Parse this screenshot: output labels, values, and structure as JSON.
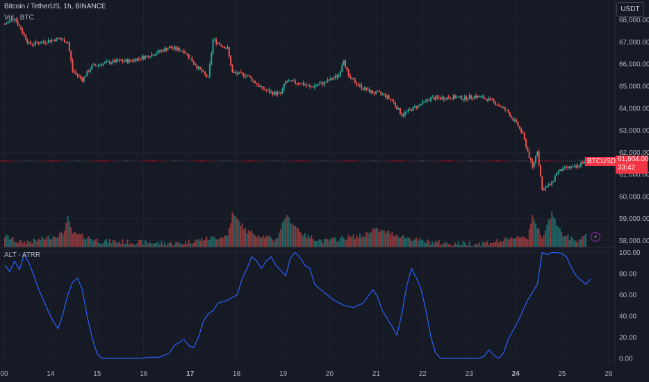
{
  "header": {
    "title": "Bitcoin / TetherUS, 1h, BINANCE",
    "volume_label": "Vol · BTC",
    "currency_button": "USDT"
  },
  "indicator": {
    "title": "ALT - ATRR"
  },
  "price_tag": {
    "symbol": "BTCUSDT",
    "price": "61,604.00",
    "countdown": "33:42"
  },
  "icons": {
    "alert": "lightning-icon"
  },
  "colors": {
    "background": "#161a25",
    "up": "#26a69a",
    "down": "#ef5350",
    "indicator_line": "#2962ff",
    "price_line": "#f23645"
  },
  "chart_data": [
    {
      "type": "candlestick",
      "title": "Bitcoin / TetherUS, 1h, BINANCE",
      "y_ticks": [
        "68,000.00",
        "67,000.00",
        "66,000.00",
        "65,000.00",
        "64,000.00",
        "63,000.00",
        "62,000.00",
        "61,000.00",
        "60,000.00",
        "59,000.00",
        "58,000.00"
      ],
      "ylim": [
        57700,
        68900
      ],
      "x_ticks": [
        "00",
        "14",
        "15",
        "16",
        "17",
        "18",
        "19",
        "20",
        "21",
        "22",
        "23",
        "24",
        "25",
        "26"
      ],
      "bold_x_ticks": [
        "17",
        "24"
      ],
      "last_price": 61604,
      "close_path": [
        [
          0,
          67800
        ],
        [
          2,
          68100
        ],
        [
          5,
          66900
        ],
        [
          8,
          67000
        ],
        [
          11,
          67150
        ],
        [
          13,
          67000
        ],
        [
          14,
          65700
        ],
        [
          16,
          65300
        ],
        [
          18,
          65900
        ],
        [
          22,
          66100
        ],
        [
          26,
          66150
        ],
        [
          30,
          66400
        ],
        [
          34,
          66750
        ],
        [
          37,
          66600
        ],
        [
          40,
          65800
        ],
        [
          42,
          65350
        ],
        [
          43,
          67100
        ],
        [
          46,
          66700
        ],
        [
          47,
          65600
        ],
        [
          50,
          65500
        ],
        [
          53,
          64900
        ],
        [
          55,
          64700
        ],
        [
          57,
          64650
        ],
        [
          58,
          65200
        ],
        [
          61,
          65150
        ],
        [
          63,
          64950
        ],
        [
          66,
          65150
        ],
        [
          69,
          65500
        ],
        [
          70,
          66250
        ],
        [
          71,
          65400
        ],
        [
          74,
          64900
        ],
        [
          76,
          64700
        ],
        [
          78,
          64650
        ],
        [
          80,
          64350
        ],
        [
          82,
          63700
        ],
        [
          84,
          63950
        ],
        [
          86,
          64200
        ],
        [
          88,
          64450
        ],
        [
          90,
          64450
        ],
        [
          93,
          64500
        ],
        [
          95,
          64450
        ],
        [
          97,
          64550
        ],
        [
          100,
          64400
        ],
        [
          102,
          64150
        ],
        [
          104,
          63800
        ],
        [
          106,
          63200
        ],
        [
          107,
          62800
        ],
        [
          109,
          61300
        ],
        [
          110,
          62100
        ],
        [
          111,
          60300
        ],
        [
          113,
          60600
        ],
        [
          114,
          61100
        ],
        [
          116,
          61300
        ],
        [
          118,
          61300
        ],
        [
          119,
          61500
        ],
        [
          120,
          61604
        ]
      ],
      "volume_path": [
        [
          0,
          58200
        ],
        [
          3,
          57900
        ],
        [
          6,
          57950
        ],
        [
          12,
          58300
        ],
        [
          13,
          59000
        ],
        [
          14,
          58300
        ],
        [
          20,
          57950
        ],
        [
          28,
          57900
        ],
        [
          36,
          57850
        ],
        [
          40,
          58000
        ],
        [
          46,
          58200
        ],
        [
          47,
          59200
        ],
        [
          50,
          58400
        ],
        [
          56,
          58000
        ],
        [
          58,
          59100
        ],
        [
          62,
          58200
        ],
        [
          66,
          57950
        ],
        [
          70,
          58100
        ],
        [
          74,
          58200
        ],
        [
          76,
          58500
        ],
        [
          80,
          58300
        ],
        [
          86,
          57950
        ],
        [
          92,
          57850
        ],
        [
          98,
          57850
        ],
        [
          104,
          58000
        ],
        [
          106,
          58200
        ],
        [
          108,
          58100
        ],
        [
          109,
          59200
        ],
        [
          111,
          58000
        ],
        [
          113,
          59300
        ],
        [
          115,
          58300
        ],
        [
          118,
          57950
        ],
        [
          120,
          58300
        ]
      ],
      "series": [
        {
          "name": "Vol · BTC"
        }
      ]
    },
    {
      "type": "line",
      "title": "ALT - ATRR",
      "y_ticks": [
        "100.00",
        "80.00",
        "60.00",
        "40.00",
        "20.00",
        "0.00"
      ],
      "ylim": [
        -6,
        105
      ],
      "points": [
        [
          0,
          88
        ],
        [
          1,
          82
        ],
        [
          2,
          92
        ],
        [
          3,
          84
        ],
        [
          4,
          98
        ],
        [
          5,
          90
        ],
        [
          6,
          78
        ],
        [
          7,
          65
        ],
        [
          8,
          55
        ],
        [
          9,
          44
        ],
        [
          10,
          35
        ],
        [
          11,
          28
        ],
        [
          12,
          42
        ],
        [
          13,
          60
        ],
        [
          14,
          72
        ],
        [
          15,
          76
        ],
        [
          16,
          65
        ],
        [
          17,
          40
        ],
        [
          18,
          20
        ],
        [
          19,
          5
        ],
        [
          20,
          0
        ],
        [
          28,
          0
        ],
        [
          30,
          1
        ],
        [
          32,
          1
        ],
        [
          34,
          5
        ],
        [
          35,
          12
        ],
        [
          36,
          15
        ],
        [
          37,
          18
        ],
        [
          38,
          12
        ],
        [
          39,
          10
        ],
        [
          40,
          20
        ],
        [
          41,
          35
        ],
        [
          42,
          42
        ],
        [
          43,
          45
        ],
        [
          44,
          52
        ],
        [
          46,
          55
        ],
        [
          48,
          60
        ],
        [
          49,
          75
        ],
        [
          50,
          85
        ],
        [
          51,
          96
        ],
        [
          52,
          92
        ],
        [
          53,
          85
        ],
        [
          54,
          92
        ],
        [
          55,
          96
        ],
        [
          56,
          88
        ],
        [
          58,
          78
        ],
        [
          59,
          95
        ],
        [
          60,
          100
        ],
        [
          61,
          95
        ],
        [
          62,
          88
        ],
        [
          63,
          85
        ],
        [
          64,
          70
        ],
        [
          66,
          62
        ],
        [
          68,
          55
        ],
        [
          70,
          50
        ],
        [
          72,
          48
        ],
        [
          74,
          52
        ],
        [
          76,
          65
        ],
        [
          77,
          58
        ],
        [
          78,
          45
        ],
        [
          80,
          30
        ],
        [
          81,
          22
        ],
        [
          82,
          42
        ],
        [
          83,
          68
        ],
        [
          84,
          85
        ],
        [
          85,
          76
        ],
        [
          86,
          65
        ],
        [
          87,
          45
        ],
        [
          88,
          20
        ],
        [
          89,
          5
        ],
        [
          90,
          0
        ],
        [
          98,
          0
        ],
        [
          99,
          2
        ],
        [
          100,
          8
        ],
        [
          101,
          3
        ],
        [
          102,
          0
        ],
        [
          103,
          5
        ],
        [
          104,
          18
        ],
        [
          106,
          35
        ],
        [
          107,
          45
        ],
        [
          108,
          55
        ],
        [
          110,
          70
        ],
        [
          111,
          100
        ],
        [
          112,
          98
        ],
        [
          113,
          100
        ],
        [
          114,
          100
        ],
        [
          115,
          99
        ],
        [
          116,
          96
        ],
        [
          117,
          86
        ],
        [
          118,
          78
        ],
        [
          119,
          74
        ],
        [
          120,
          70
        ],
        [
          121,
          75
        ]
      ]
    }
  ]
}
